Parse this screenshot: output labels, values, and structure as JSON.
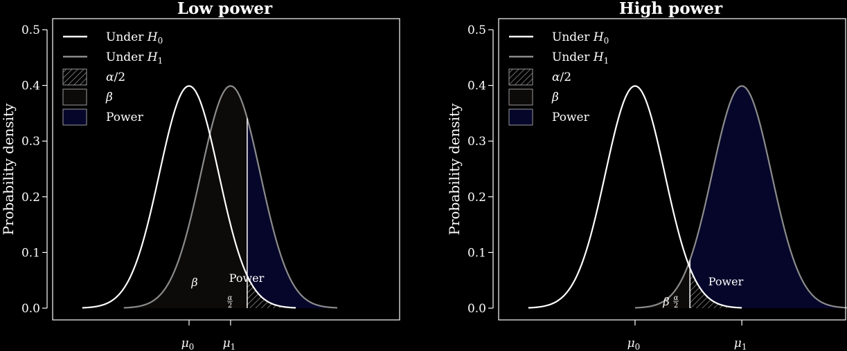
{
  "colors": {
    "background": "#000000",
    "h0_curve": "#ffffff",
    "h1_curve": "#8c8c8c",
    "beta_fill": "#0d0b0a",
    "power_fill": "#05062a",
    "alpha_hatch": "#9a9a9a",
    "axis": "#ffffff"
  },
  "legend": {
    "items": [
      {
        "label_main": "Under ",
        "label_italic": "H",
        "label_sub": "0",
        "kind": "line",
        "color": "#ffffff"
      },
      {
        "label_main": "Under ",
        "label_italic": "H",
        "label_sub": "1",
        "kind": "line",
        "color": "#8c8c8c"
      },
      {
        "label_main": "",
        "label_italic": "α",
        "label_sub": "",
        "label_after": "/2",
        "kind": "hatch",
        "color": "#9a9a9a"
      },
      {
        "label_main": "",
        "label_italic": "β",
        "label_sub": "",
        "kind": "box",
        "color": "#0d0b0a"
      },
      {
        "label_main": "Power",
        "label_italic": "",
        "label_sub": "",
        "kind": "box",
        "color": "#05062a"
      }
    ]
  },
  "chart_data": [
    {
      "type": "area",
      "title": "Low power",
      "ylabel": "Probability density",
      "ylim": [
        0,
        0.5
      ],
      "yticks": [
        "0.0",
        "0.1",
        "0.2",
        "0.3",
        "0.4",
        "0.5"
      ],
      "xlim": [
        -4.6,
        7.1
      ],
      "x_ticks": [
        {
          "value": 0,
          "label": "μ",
          "sub": "0"
        },
        {
          "value": 1.4,
          "label": "μ",
          "sub": "1"
        }
      ],
      "series": [
        {
          "name": "Under H0",
          "mean": 0,
          "sd": 1
        },
        {
          "name": "Under H1",
          "mean": 1.4,
          "sd": 1
        }
      ],
      "critical_value": 1.96,
      "annotations": {
        "beta": "β",
        "power": "Power",
        "alpha_num": "α",
        "alpha_den": "2"
      },
      "grid": false,
      "legend_position": "top-left"
    },
    {
      "type": "area",
      "title": "High power",
      "ylabel": "Probability density",
      "ylim": [
        0,
        0.5
      ],
      "yticks": [
        "0.0",
        "0.1",
        "0.2",
        "0.3",
        "0.4",
        "0.5"
      ],
      "xlim": [
        -4.6,
        7.1
      ],
      "x_ticks": [
        {
          "value": 0,
          "label": "μ",
          "sub": "0"
        },
        {
          "value": 3.6,
          "label": "μ",
          "sub": "1"
        }
      ],
      "series": [
        {
          "name": "Under H0",
          "mean": 0,
          "sd": 1
        },
        {
          "name": "Under H1",
          "mean": 3.6,
          "sd": 1
        }
      ],
      "critical_value": 1.85,
      "annotations": {
        "beta": "β",
        "power": "Power",
        "alpha_num": "α",
        "alpha_den": "2"
      },
      "grid": false,
      "legend_position": "top-left"
    }
  ]
}
